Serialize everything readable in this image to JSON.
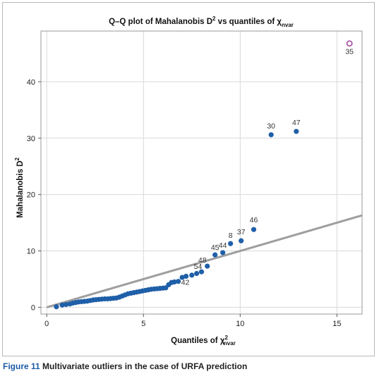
{
  "caption": {
    "label": "Figure 11",
    "text": "Multivariate outliers in the case of URFA prediction"
  },
  "chart_data": {
    "type": "scatter",
    "title": "Q–Q plot of Mahalanobis D² vs quantiles of χ²nvar",
    "title_main": "Q–Q plot of Mahalanobis D",
    "title_sup": "2",
    "title_mid": " vs quantiles of χ",
    "title_sub": "nvar",
    "xlabel": "Quantiles of χ²nvar",
    "xlabel_main": "Quantiles of χ",
    "xlabel_sup": "2",
    "xlabel_sub": "nvar",
    "ylabel": "Mahalanobis D²",
    "ylabel_main": "Mahalanobis D",
    "ylabel_sup": "2",
    "xlim": [
      -0.3,
      16.3
    ],
    "ylim": [
      -1.2,
      49
    ],
    "xticks": [
      0,
      5,
      10,
      15
    ],
    "yticks": [
      0,
      10,
      20,
      30,
      40
    ],
    "grid": true,
    "colors": {
      "points": "#1f5fa8",
      "outlier": "#a0409a",
      "reference_line": "#9e9e9e",
      "grid": "#d9d9d9"
    },
    "reference_line": {
      "x": [
        0,
        16.3
      ],
      "y": [
        0,
        16.3
      ]
    },
    "series": [
      {
        "values": [
          {
            "x": 0.5,
            "y": 0.1
          },
          {
            "x": 0.8,
            "y": 0.4
          },
          {
            "x": 1.0,
            "y": 0.5
          },
          {
            "x": 1.2,
            "y": 0.6
          },
          {
            "x": 1.35,
            "y": 0.75
          },
          {
            "x": 1.5,
            "y": 0.85
          },
          {
            "x": 1.65,
            "y": 0.95
          },
          {
            "x": 1.8,
            "y": 1.0
          },
          {
            "x": 1.95,
            "y": 1.05
          },
          {
            "x": 2.1,
            "y": 1.1
          },
          {
            "x": 2.25,
            "y": 1.2
          },
          {
            "x": 2.4,
            "y": 1.3
          },
          {
            "x": 2.55,
            "y": 1.35
          },
          {
            "x": 2.7,
            "y": 1.4
          },
          {
            "x": 2.85,
            "y": 1.45
          },
          {
            "x": 3.0,
            "y": 1.5
          },
          {
            "x": 3.15,
            "y": 1.5
          },
          {
            "x": 3.3,
            "y": 1.55
          },
          {
            "x": 3.45,
            "y": 1.6
          },
          {
            "x": 3.6,
            "y": 1.65
          },
          {
            "x": 3.75,
            "y": 1.8
          },
          {
            "x": 3.9,
            "y": 2.0
          },
          {
            "x": 4.05,
            "y": 2.2
          },
          {
            "x": 4.2,
            "y": 2.4
          },
          {
            "x": 4.35,
            "y": 2.5
          },
          {
            "x": 4.5,
            "y": 2.6
          },
          {
            "x": 4.65,
            "y": 2.7
          },
          {
            "x": 4.8,
            "y": 2.8
          },
          {
            "x": 4.95,
            "y": 2.9
          },
          {
            "x": 5.1,
            "y": 3.0
          },
          {
            "x": 5.25,
            "y": 3.1
          },
          {
            "x": 5.4,
            "y": 3.2
          },
          {
            "x": 5.55,
            "y": 3.25
          },
          {
            "x": 5.7,
            "y": 3.3
          },
          {
            "x": 5.85,
            "y": 3.35
          },
          {
            "x": 6.0,
            "y": 3.4
          },
          {
            "x": 6.15,
            "y": 3.45
          },
          {
            "x": 6.3,
            "y": 4.0
          },
          {
            "x": 6.45,
            "y": 4.4
          },
          {
            "x": 6.6,
            "y": 4.5
          },
          {
            "x": 6.8,
            "y": 4.6
          },
          {
            "x": 7.0,
            "y": 5.3
          },
          {
            "x": 7.2,
            "y": 5.5
          },
          {
            "x": 7.5,
            "y": 5.7
          },
          {
            "x": 7.75,
            "y": 6.0
          },
          {
            "x": 8.0,
            "y": 6.3
          },
          {
            "x": 8.3,
            "y": 7.3
          },
          {
            "x": 8.7,
            "y": 9.3
          },
          {
            "x": 9.1,
            "y": 9.7
          },
          {
            "x": 9.5,
            "y": 11.3
          },
          {
            "x": 10.05,
            "y": 11.8
          },
          {
            "x": 10.7,
            "y": 13.8
          },
          {
            "x": 11.6,
            "y": 30.6
          },
          {
            "x": 12.9,
            "y": 31.2
          }
        ]
      }
    ],
    "outlier_point": {
      "x": 15.65,
      "y": 46.8,
      "label": "35"
    },
    "point_labels": [
      {
        "text": "42",
        "x": 7.75,
        "y": 6.0
      },
      {
        "text": "48",
        "x": 8.3,
        "y": 7.3
      },
      {
        "text": "54",
        "x": 8.0,
        "y": 6.3
      },
      {
        "text": "45",
        "x": 8.7,
        "y": 9.3
      },
      {
        "text": "44",
        "x": 9.1,
        "y": 9.7
      },
      {
        "text": "8",
        "x": 9.5,
        "y": 11.3
      },
      {
        "text": "37",
        "x": 10.05,
        "y": 11.8
      },
      {
        "text": "46",
        "x": 10.7,
        "y": 13.8
      },
      {
        "text": "30",
        "x": 11.6,
        "y": 30.6
      },
      {
        "text": "47",
        "x": 12.9,
        "y": 31.2
      }
    ]
  }
}
